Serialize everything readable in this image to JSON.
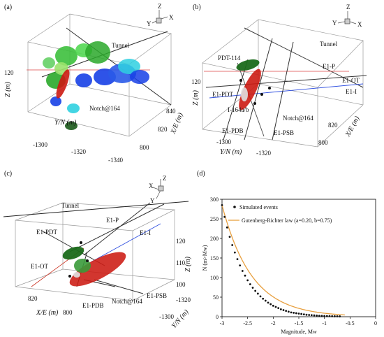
{
  "panels": {
    "a": {
      "label": "(a)",
      "labels": {
        "tunnel": "Tunnel",
        "notch": "Notch@164"
      },
      "axes": {
        "z_title": "Z (m)",
        "y_title": "Y/N (m)",
        "x_title": "X/E (m)"
      },
      "ticks": {
        "z": [
          "120"
        ],
        "y": [
          "-1300",
          "-1320",
          "-1340"
        ],
        "x": [
          "840",
          "820",
          "800"
        ]
      },
      "triad": {
        "z": "Z",
        "y": "Y",
        "x": "X"
      }
    },
    "b": {
      "label": "(b)",
      "labels": {
        "tunnel": "Tunnel",
        "pdt114": "PDT-114",
        "e1pdt": "E1-PDT",
        "i164": "I-164a/b",
        "notch": "Notch@164",
        "e1pdb": "E1-PDB",
        "e1psb": "E1-PSB",
        "e1p": "E1-P",
        "e1ot": "E1-OT",
        "e1i": "E1-I"
      },
      "axes": {
        "z_title": "Z (m)",
        "y_title": "Y/N (m)",
        "x_title": "X/E (m)"
      },
      "ticks": {
        "z": [
          "120"
        ],
        "y": [
          "-1300",
          "-1320"
        ],
        "x": [
          "820",
          "800"
        ]
      },
      "triad": {
        "z": "Z",
        "y": "Y",
        "x": "X"
      }
    },
    "c": {
      "label": "(c)",
      "labels": {
        "tunnel": "Tunnel",
        "e1pdt": "E1-PDT",
        "e1p": "E1-P",
        "e1i": "E1-I",
        "e1ot": "E1-OT",
        "e1pdb": "E1-PDB",
        "notch": "Notch@164",
        "e1psb": "E1-PSB"
      },
      "axes": {
        "z_title": "Z (m)",
        "y_title": "Y/N (m)",
        "x_title": "X/E (m)"
      },
      "ticks": {
        "z": [
          "120",
          "110",
          "100"
        ],
        "y": [
          "-1300",
          "-1320"
        ],
        "x": [
          "820",
          "800"
        ]
      },
      "triad": {
        "z": "Z",
        "y": "Y",
        "x": "X"
      }
    },
    "d": {
      "label": "(d)",
      "legend": {
        "points": "Simulated events",
        "line": "Gutenberg-Richter law (a=0.20, b=0.75)"
      }
    }
  },
  "colors": {
    "green": "#2aa82a",
    "dark_green": "#1a5a1a",
    "blue": "#1740e6",
    "cyan": "#2fd0e0",
    "red": "#cc1a12",
    "orange": "#e8a040"
  },
  "chart_data": {
    "type": "scatter",
    "xlabel": "Magnitude, Mw",
    "ylabel": "N (m>Mw)",
    "xlim": [
      -3,
      0
    ],
    "ylim": [
      0,
      300
    ],
    "xticks": [
      "-3",
      "-2.5",
      "-2",
      "-1.5",
      "-1",
      "-0.5",
      "0"
    ],
    "yticks": [
      "0",
      "50",
      "100",
      "150",
      "200",
      "250",
      "300"
    ],
    "series": [
      {
        "name": "Simulated events",
        "kind": "points",
        "x": [
          -3.0,
          -2.95,
          -2.9,
          -2.85,
          -2.8,
          -2.75,
          -2.7,
          -2.65,
          -2.6,
          -2.55,
          -2.5,
          -2.45,
          -2.4,
          -2.35,
          -2.3,
          -2.25,
          -2.2,
          -2.15,
          -2.1,
          -2.05,
          -2.0,
          -1.95,
          -1.9,
          -1.85,
          -1.8,
          -1.75,
          -1.7,
          -1.65,
          -1.6,
          -1.55,
          -1.5,
          -1.45,
          -1.4,
          -1.35,
          -1.3,
          -1.25,
          -1.2,
          -1.15,
          -1.1,
          -1.05,
          -1.0,
          -0.95,
          -0.9,
          -0.85,
          -0.8,
          -0.75,
          -0.7
        ],
        "y": [
          285,
          255,
          228,
          204,
          183,
          164,
          147,
          131,
          117,
          105,
          93,
          83,
          74,
          66,
          59,
          52,
          46,
          41,
          36,
          32,
          28,
          25,
          22,
          19,
          17,
          15,
          13,
          11,
          10,
          9,
          8,
          7,
          6,
          5,
          4.5,
          4,
          3.5,
          3,
          2.5,
          2.2,
          2,
          1.8,
          1.6,
          1.4,
          1.2,
          1.1,
          1
        ]
      },
      {
        "name": "Gutenberg-Richter law (a=0.20, b=0.75)",
        "kind": "line",
        "a": 0.2,
        "b": 0.75,
        "x_range": [
          -3,
          -0.6
        ]
      }
    ]
  }
}
